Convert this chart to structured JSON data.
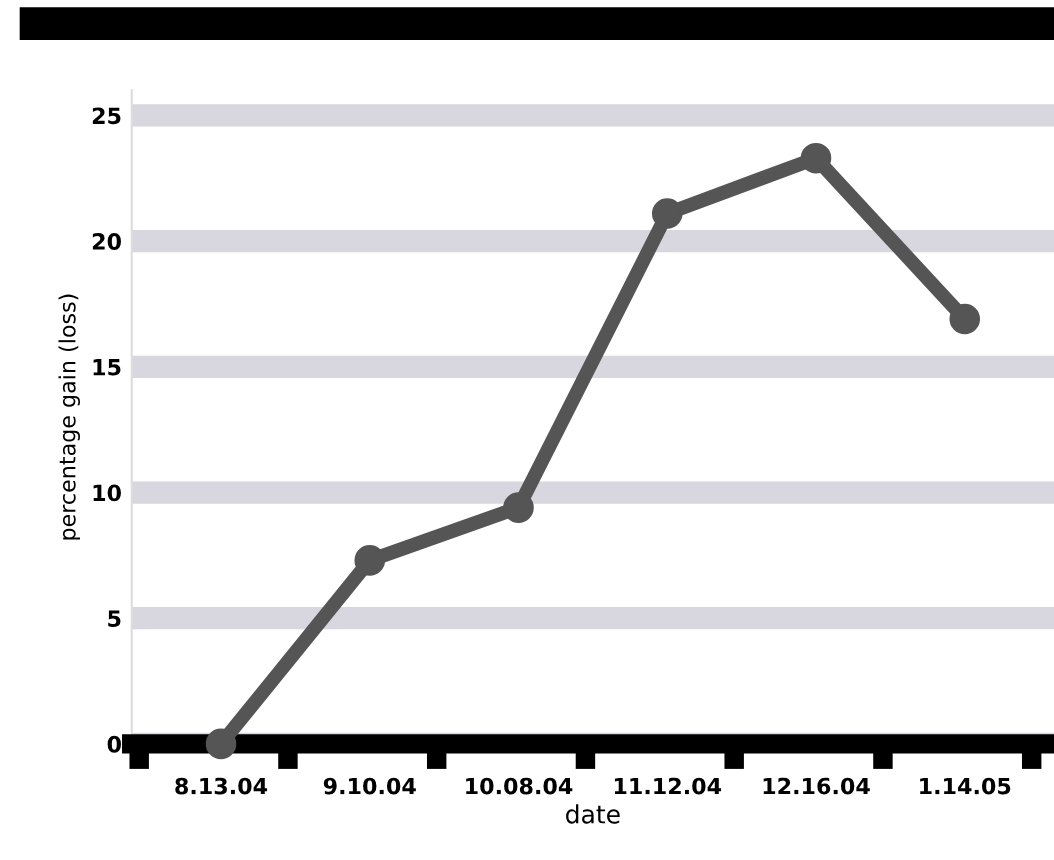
{
  "chart_data": {
    "type": "line",
    "xlabel": "date",
    "ylabel": "percentage gain (loss)",
    "categories": [
      "8.13.04",
      "9.10.04",
      "10.08.04",
      "11.12.04",
      "12.16.04",
      "1.14.05"
    ],
    "series": [
      {
        "color": "#555555",
        "values": [
          0,
          7.3,
          9.4,
          21.1,
          23.3,
          16.9
        ]
      }
    ],
    "ylim": [
      0,
      26
    ],
    "yticks": [
      0,
      5,
      10,
      15,
      20,
      25
    ],
    "grid": "y",
    "marker": "circle",
    "line_style": "solid"
  }
}
